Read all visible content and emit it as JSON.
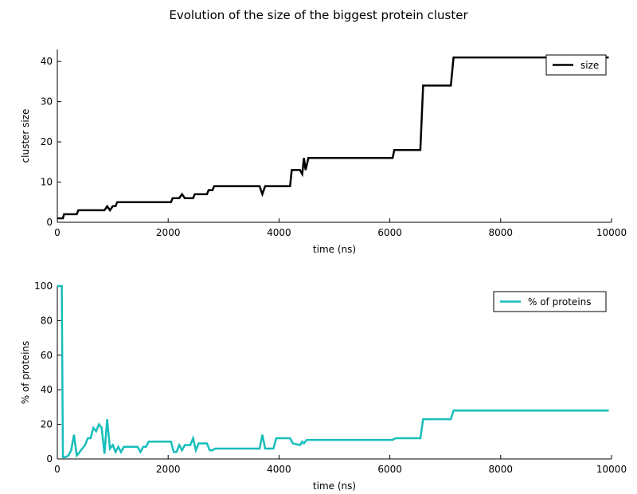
{
  "figure": {
    "title": "Evolution of the size of the biggest protein cluster"
  },
  "chart_data": [
    {
      "type": "line",
      "xlabel": "time (ns)",
      "ylabel": "cluster size",
      "xlim": [
        0,
        10000
      ],
      "ylim": [
        0,
        43
      ],
      "xticks": [
        0,
        2000,
        4000,
        6000,
        8000,
        10000
      ],
      "yticks": [
        0,
        10,
        20,
        30,
        40
      ],
      "grid": false,
      "legend_position": "top-right",
      "series": [
        {
          "name": "size",
          "color": "#000000",
          "x": [
            0,
            100,
            120,
            350,
            380,
            850,
            900,
            950,
            1000,
            1050,
            1080,
            2050,
            2080,
            2200,
            2250,
            2300,
            2450,
            2480,
            2700,
            2730,
            2800,
            2830,
            3650,
            3700,
            3750,
            4200,
            4230,
            4380,
            4420,
            4450,
            4480,
            4530,
            6050,
            6080,
            6550,
            6600,
            7100,
            7150,
            9950
          ],
          "y": [
            1,
            1,
            2,
            2,
            3,
            3,
            4,
            3,
            4,
            4,
            5,
            5,
            6,
            6,
            7,
            6,
            6,
            7,
            7,
            8,
            8,
            9,
            9,
            7,
            9,
            9,
            13,
            13,
            12,
            16,
            13,
            16,
            16,
            18,
            18,
            34,
            34,
            41,
            41
          ]
        }
      ]
    },
    {
      "type": "line",
      "xlabel": "time (ns)",
      "ylabel": "% of proteins",
      "xlim": [
        0,
        10000
      ],
      "ylim": [
        0,
        100
      ],
      "xticks": [
        0,
        2000,
        4000,
        6000,
        8000,
        10000
      ],
      "yticks": [
        0,
        20,
        40,
        60,
        80,
        100
      ],
      "grid": false,
      "legend_position": "top-right",
      "series": [
        {
          "name": "% of proteins",
          "color": "#17bebb",
          "x": [
            0,
            80,
            100,
            150,
            200,
            250,
            300,
            350,
            380,
            450,
            500,
            550,
            600,
            650,
            700,
            750,
            800,
            850,
            900,
            950,
            1000,
            1050,
            1100,
            1150,
            1200,
            1250,
            1300,
            1350,
            1400,
            1450,
            1500,
            1550,
            1600,
            1650,
            1700,
            1750,
            1800,
            2050,
            2100,
            2150,
            2200,
            2250,
            2300,
            2350,
            2400,
            2450,
            2500,
            2550,
            2600,
            2650,
            2700,
            2750,
            2800,
            2850,
            3650,
            3700,
            3750,
            3900,
            3950,
            4200,
            4250,
            4380,
            4420,
            4450,
            4500,
            6050,
            6100,
            6550,
            6600,
            7100,
            7150,
            9950
          ],
          "y": [
            100,
            100,
            1,
            1,
            2,
            5,
            14,
            2,
            3,
            6,
            8,
            12,
            12,
            18,
            16,
            20,
            18,
            3,
            23,
            6,
            8,
            4,
            7,
            4,
            7,
            7,
            7,
            7,
            7,
            7,
            4,
            7,
            7,
            10,
            10,
            10,
            10,
            10,
            4,
            4,
            8,
            5,
            8,
            8,
            8,
            12,
            5,
            9,
            9,
            9,
            9,
            5,
            5,
            6,
            6,
            14,
            6,
            6,
            12,
            12,
            9,
            8,
            10,
            9,
            11,
            11,
            12,
            12,
            23,
            23,
            28,
            28
          ]
        }
      ]
    }
  ]
}
